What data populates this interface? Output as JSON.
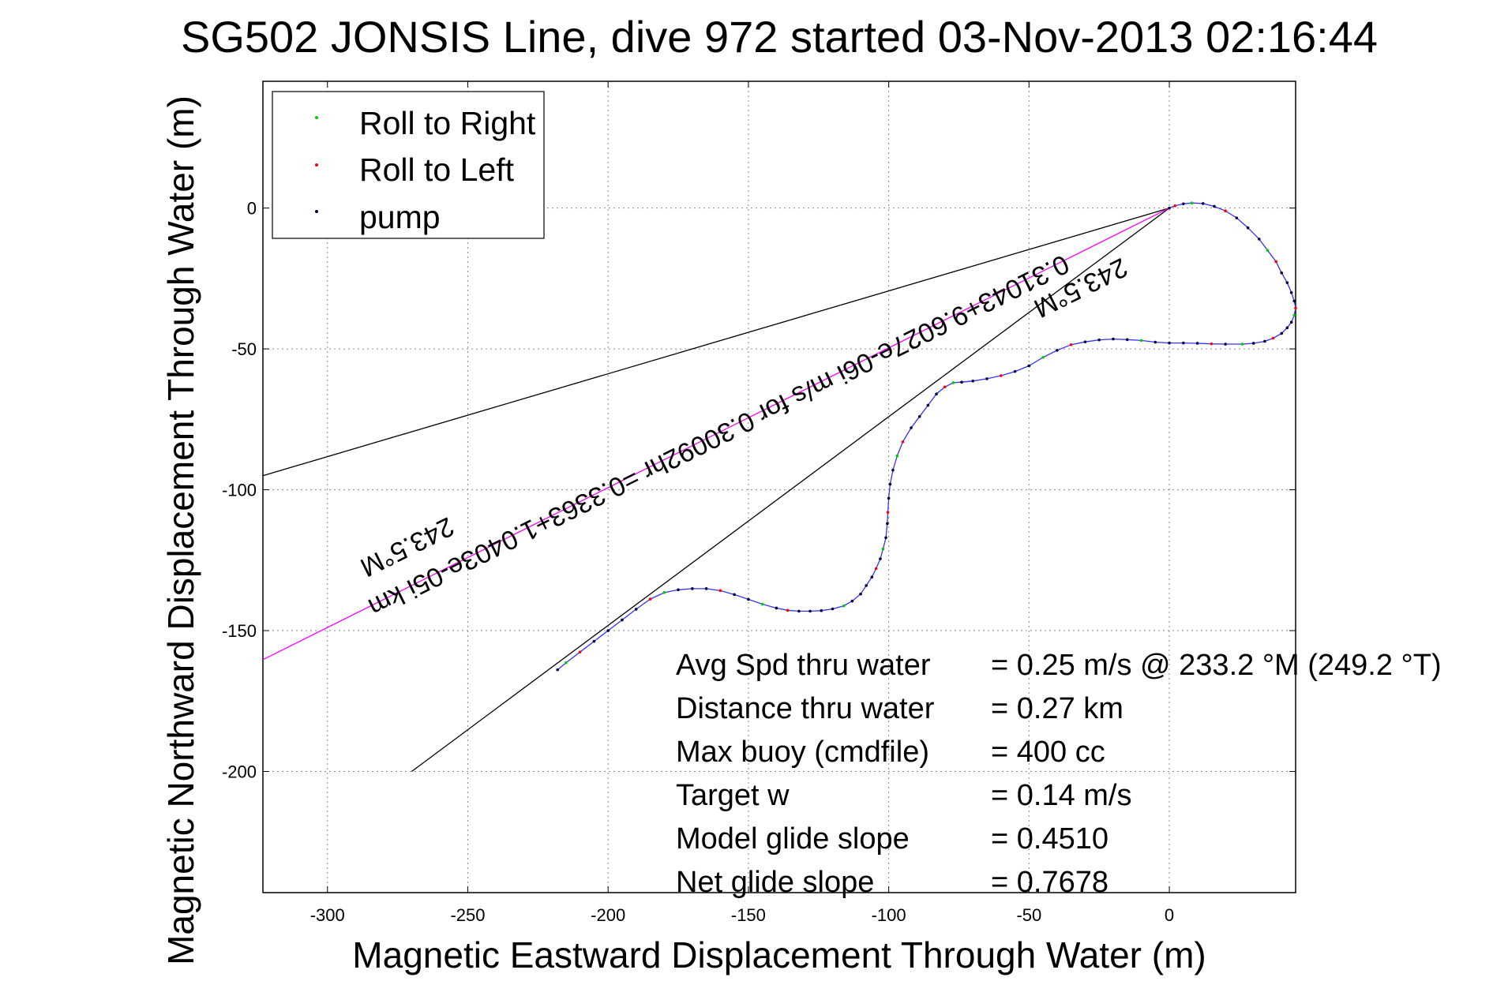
{
  "chart_data": {
    "type": "scatter",
    "title": "SG502 JONSIS Line, dive 972 started 03-Nov-2013 02:16:44",
    "xlabel": "Magnetic Eastward Displacement Through Water (m)",
    "ylabel": "Magnetic Northward Displacement Through Water (m)",
    "xlim": [
      -323,
      45
    ],
    "ylim": [
      -243,
      45
    ],
    "xticks": [
      -300,
      -250,
      -200,
      -150,
      -100,
      -50,
      0
    ],
    "yticks": [
      0,
      -50,
      -100,
      -150,
      -200
    ],
    "grid": true,
    "legend_position": "top-left",
    "colors": {
      "roll_right": "#00cc00",
      "roll_left": "#ff0000",
      "pump": "#000033",
      "track": "#3333ff",
      "bearing_line": "#ff00ff",
      "cone": "#000000"
    },
    "legend": [
      "Roll to Right",
      "Roll to Left",
      "pump"
    ],
    "track": {
      "x": [
        0,
        2,
        5,
        8,
        12,
        16,
        20,
        24,
        28,
        32,
        35,
        38,
        40,
        42,
        43.5,
        44.5,
        45,
        44.5,
        43.5,
        42,
        40,
        37,
        34,
        30,
        26,
        20,
        15,
        10,
        5,
        0,
        -5,
        -10,
        -15,
        -20,
        -25,
        -30,
        -35,
        -40,
        -45,
        -50,
        -55,
        -60,
        -65,
        -70,
        -74,
        -77,
        -80,
        -83,
        -86,
        -89,
        -92,
        -95,
        -97,
        -98.5,
        -99.5,
        -100,
        -100.3,
        -100.5,
        -101,
        -102,
        -103,
        -104.5,
        -106,
        -108,
        -110,
        -113,
        -116,
        -120,
        -124,
        -128,
        -132,
        -136,
        -140,
        -145,
        -150,
        -155,
        -160,
        -165,
        -170,
        -175,
        -180,
        -185,
        -190,
        -195,
        -200,
        -205,
        -210,
        -215,
        -218
      ],
      "y": [
        0,
        0.8,
        1.5,
        1.8,
        1.6,
        0.6,
        -1,
        -3.5,
        -7,
        -11,
        -15,
        -19,
        -23,
        -26.5,
        -30,
        -33,
        -35.5,
        -38,
        -40.5,
        -42.5,
        -44.5,
        -46.2,
        -47.3,
        -48,
        -48.3,
        -48.3,
        -48.2,
        -48.0,
        -47.9,
        -47.9,
        -47.6,
        -47,
        -46.7,
        -46.5,
        -46.8,
        -47.5,
        -48.5,
        -50.5,
        -53,
        -56,
        -58,
        -59.5,
        -60.6,
        -61.4,
        -61.8,
        -62,
        -63.5,
        -66,
        -70,
        -74,
        -78,
        -83,
        -88,
        -93,
        -98,
        -103,
        -108,
        -112,
        -117,
        -121,
        -124.5,
        -128,
        -131,
        -134,
        -137,
        -139.5,
        -141.2,
        -142.3,
        -142.9,
        -143.1,
        -143.1,
        -142.8,
        -142,
        -140.6,
        -138.9,
        -137.2,
        -135.8,
        -135.1,
        -135.1,
        -135.5,
        -136.5,
        -138.8,
        -142.4,
        -146.2,
        -150,
        -153.8,
        -157.6,
        -161.4,
        -163.9
      ]
    },
    "bearing_line": {
      "x": [
        0,
        -323
      ],
      "y": [
        0,
        -160.3
      ]
    },
    "cone_lines": [
      {
        "x": [
          0,
          -323
        ],
        "y": [
          0,
          -95
        ]
      },
      {
        "x": [
          0,
          -270
        ],
        "y": [
          0,
          -200
        ]
      }
    ],
    "annotations": [
      {
        "text": "243.5°M",
        "x": -33,
        "y": -25.5
      },
      {
        "text": "0.31043+9.6027e-06i m/s for 0.30092hr =0.3363+1.0403e-05i km",
        "x": -162,
        "y": -78
      },
      {
        "text": "243.5°M",
        "x": -273,
        "y": -117.5
      }
    ],
    "stats": [
      {
        "label": "Avg Spd thru water",
        "value": "=  0.25 m/s @ 233.2 °M (249.2 °T)"
      },
      {
        "label": "Distance thru water",
        "value": "=  0.27 km"
      },
      {
        "label": "Max buoy (cmdfile)",
        "value": "= 400 cc"
      },
      {
        "label": "Target w",
        "value": "= 0.14 m/s"
      },
      {
        "label": "Model glide slope",
        "value": "= 0.4510"
      },
      {
        "label": "Net glide slope",
        "value": "= 0.7678"
      }
    ]
  }
}
